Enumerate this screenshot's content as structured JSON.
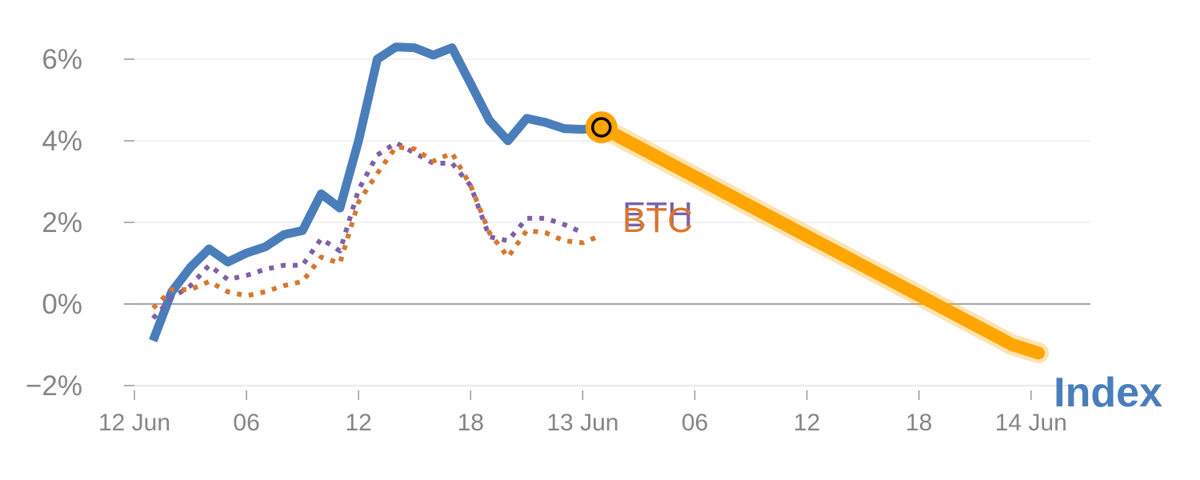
{
  "chart_data": {
    "type": "line",
    "y_unit": "%",
    "ylim": [
      -2,
      6
    ],
    "y_ticks": [
      "−2%",
      "0%",
      "2%",
      "4%",
      "6%"
    ],
    "y_tick_values": [
      -2,
      0,
      2,
      4,
      6
    ],
    "x_tick_labels": [
      "12 Jun",
      "06",
      "12",
      "18",
      "13 Jun",
      "06",
      "12",
      "18",
      "14 Jun"
    ],
    "x_tick_hours": [
      0,
      6,
      12,
      18,
      24,
      30,
      36,
      42,
      48
    ],
    "grid": true,
    "series": [
      {
        "name": "Index",
        "color": "#4a7ebb",
        "style": "solid",
        "points": [
          [
            1,
            -0.9
          ],
          [
            2,
            0.3
          ],
          [
            3,
            0.9
          ],
          [
            4,
            1.35
          ],
          [
            5,
            1.03
          ],
          [
            6,
            1.25
          ],
          [
            7,
            1.4
          ],
          [
            8,
            1.7
          ],
          [
            9,
            1.8
          ],
          [
            10,
            2.7
          ],
          [
            11,
            2.35
          ],
          [
            12,
            4.0
          ],
          [
            13,
            6.0
          ],
          [
            14,
            6.3
          ],
          [
            15,
            6.28
          ],
          [
            16,
            6.1
          ],
          [
            17,
            6.28
          ],
          [
            18,
            5.4
          ],
          [
            19,
            4.5
          ],
          [
            20,
            4.0
          ],
          [
            21,
            4.55
          ],
          [
            22,
            4.45
          ],
          [
            23,
            4.3
          ],
          [
            24,
            4.28
          ],
          [
            25,
            4.33
          ]
        ]
      },
      {
        "name": "Index",
        "color": "#ffa500",
        "style": "projection",
        "points": [
          [
            25,
            4.33
          ],
          [
            47,
            -1.0
          ],
          [
            48.4,
            -1.2
          ]
        ]
      },
      {
        "name": "ETH",
        "color": "#7f5fa8",
        "style": "dotted",
        "points": [
          [
            1,
            -0.35
          ],
          [
            2,
            0.15
          ],
          [
            3,
            0.45
          ],
          [
            4,
            0.95
          ],
          [
            5,
            0.6
          ],
          [
            6,
            0.7
          ],
          [
            7,
            0.85
          ],
          [
            8,
            0.95
          ],
          [
            9,
            0.95
          ],
          [
            10,
            1.6
          ],
          [
            11,
            1.3
          ],
          [
            12,
            2.8
          ],
          [
            13,
            3.65
          ],
          [
            14,
            3.95
          ],
          [
            15,
            3.7
          ],
          [
            16,
            3.45
          ],
          [
            17,
            3.45
          ],
          [
            18,
            2.9
          ],
          [
            19,
            1.65
          ],
          [
            20,
            1.55
          ],
          [
            21,
            2.1
          ],
          [
            22,
            2.1
          ],
          [
            23,
            1.95
          ],
          [
            24,
            1.75
          ]
        ]
      },
      {
        "name": "BTC",
        "color": "#d9772e",
        "style": "dotted",
        "points": [
          [
            1,
            -0.1
          ],
          [
            2,
            0.35
          ],
          [
            3,
            0.35
          ],
          [
            4,
            0.55
          ],
          [
            5,
            0.3
          ],
          [
            6,
            0.2
          ],
          [
            7,
            0.3
          ],
          [
            8,
            0.45
          ],
          [
            9,
            0.55
          ],
          [
            10,
            1.15
          ],
          [
            11,
            1.0
          ],
          [
            12,
            2.5
          ],
          [
            13,
            3.2
          ],
          [
            14,
            3.85
          ],
          [
            15,
            3.8
          ],
          [
            16,
            3.5
          ],
          [
            17,
            3.7
          ],
          [
            18,
            2.9
          ],
          [
            19,
            1.75
          ],
          [
            20,
            1.15
          ],
          [
            21,
            1.8
          ],
          [
            22,
            1.75
          ],
          [
            23,
            1.55
          ],
          [
            24,
            1.5
          ],
          [
            24.8,
            1.65
          ]
        ]
      }
    ],
    "labels": {
      "eth": "ETH",
      "btc": "BTC",
      "index": "Index"
    }
  }
}
